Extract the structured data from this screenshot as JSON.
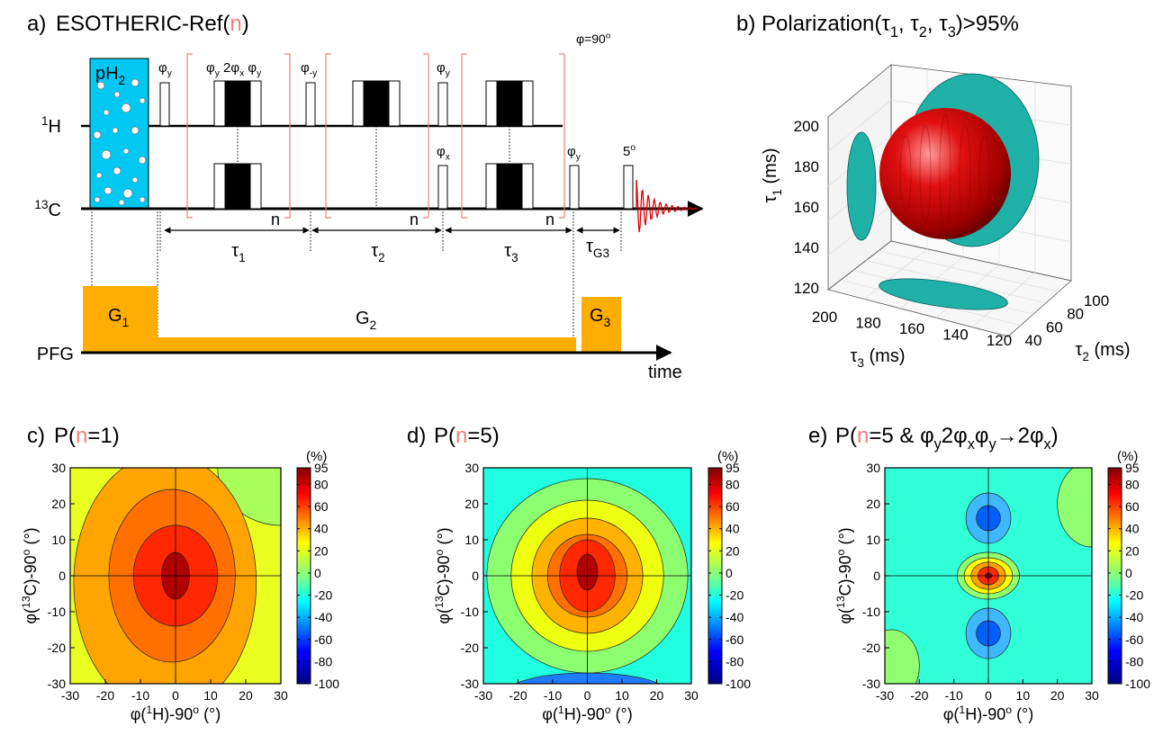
{
  "panel_a": {
    "label": "a)",
    "title": [
      "ESOTHERIC-Ref(",
      "n",
      ")"
    ],
    "ph2": [
      "pH",
      "2"
    ],
    "h1": [
      "1",
      "H"
    ],
    "c13": [
      "13",
      "C"
    ],
    "pfg": "PFG",
    "time": "time",
    "phase_1": [
      "φ",
      "y"
    ],
    "phase_group": [
      "φ",
      "y",
      " 2φ",
      "x",
      " φ",
      "y"
    ],
    "phase_2": [
      "φ",
      "-y"
    ],
    "phase_3": [
      "φ",
      "y"
    ],
    "phase_4": [
      "φ",
      "x"
    ],
    "phase_5": [
      "φ",
      "y"
    ],
    "flip": [
      "5",
      "o"
    ],
    "phi90": [
      "φ=90",
      "o"
    ],
    "loop_n": [
      "n",
      "n",
      "n"
    ],
    "tau_1": [
      "τ",
      "1"
    ],
    "tau_2": [
      "τ",
      "2"
    ],
    "tau_3": [
      "τ",
      "3"
    ],
    "tau_g3": [
      "τ",
      "G3"
    ],
    "g1": [
      "G",
      "1"
    ],
    "g2": [
      "G",
      "2"
    ],
    "g3": [
      "G",
      "3"
    ]
  },
  "panel_b": {
    "label": "b)",
    "title": [
      "Polarization(τ",
      "1",
      ", τ",
      "2",
      ", τ",
      "3",
      ")>95%"
    ],
    "y_label": [
      "τ",
      "1",
      " (ms)"
    ],
    "yticks": [
      200,
      180,
      160,
      140,
      120
    ],
    "x3_label": [
      "τ",
      "3",
      " (ms)"
    ],
    "x3ticks": [
      200,
      180,
      160,
      140,
      120
    ],
    "x2_label": [
      "τ",
      "2",
      " (ms)"
    ],
    "x2ticks": [
      40,
      60,
      80,
      100
    ]
  },
  "contour_panels": [
    {
      "label": "c)",
      "title": [
        "P(",
        "n",
        "=1)"
      ],
      "unit": "(%)",
      "x_label": [
        "φ(",
        "1",
        "H)-90",
        "o",
        " (°)"
      ],
      "y_label": [
        "φ(",
        "13",
        "C)-90",
        "o",
        " (°)"
      ],
      "xticks": [
        -30,
        -20,
        -10,
        0,
        10,
        20,
        30
      ],
      "yticks": [
        30,
        20,
        10,
        0,
        -10,
        -20,
        -30
      ],
      "colorbar_ticks": [
        95,
        80,
        60,
        40,
        20,
        0,
        -20,
        -40,
        -60,
        -80,
        -100
      ]
    },
    {
      "label": "d)",
      "title": [
        "P(",
        "n",
        "=5)"
      ],
      "unit": "(%)",
      "x_label": [
        "φ(",
        "1",
        "H)-90",
        "o",
        " (°)"
      ],
      "y_label": [
        "φ(",
        "13",
        "C)-90",
        "o",
        " (°)"
      ],
      "xticks": [
        -30,
        -20,
        -10,
        0,
        10,
        20,
        30
      ],
      "yticks": [
        30,
        20,
        10,
        0,
        -10,
        -20,
        -30
      ],
      "colorbar_ticks": [
        95,
        80,
        60,
        40,
        20,
        0,
        -20,
        -40,
        -60,
        -80,
        -100
      ]
    },
    {
      "label": "e)",
      "title": [
        "P(",
        "n",
        "=5 & φ",
        "y",
        "2φ",
        "x",
        "φ",
        "y",
        "→2φ",
        "x",
        ")"
      ],
      "unit": "(%)",
      "x_label": [
        "φ(",
        "1",
        "H)-90",
        "o",
        " (°)"
      ],
      "y_label": [
        "φ(",
        "13",
        "C)-90",
        "o",
        " (°)"
      ],
      "xticks": [
        -30,
        -20,
        -10,
        0,
        10,
        20,
        30
      ],
      "yticks": [
        30,
        20,
        10,
        0,
        -10,
        -20,
        -30
      ],
      "colorbar_ticks": [
        95,
        80,
        60,
        40,
        20,
        0,
        -20,
        -40,
        -60,
        -80,
        -100
      ]
    }
  ]
}
